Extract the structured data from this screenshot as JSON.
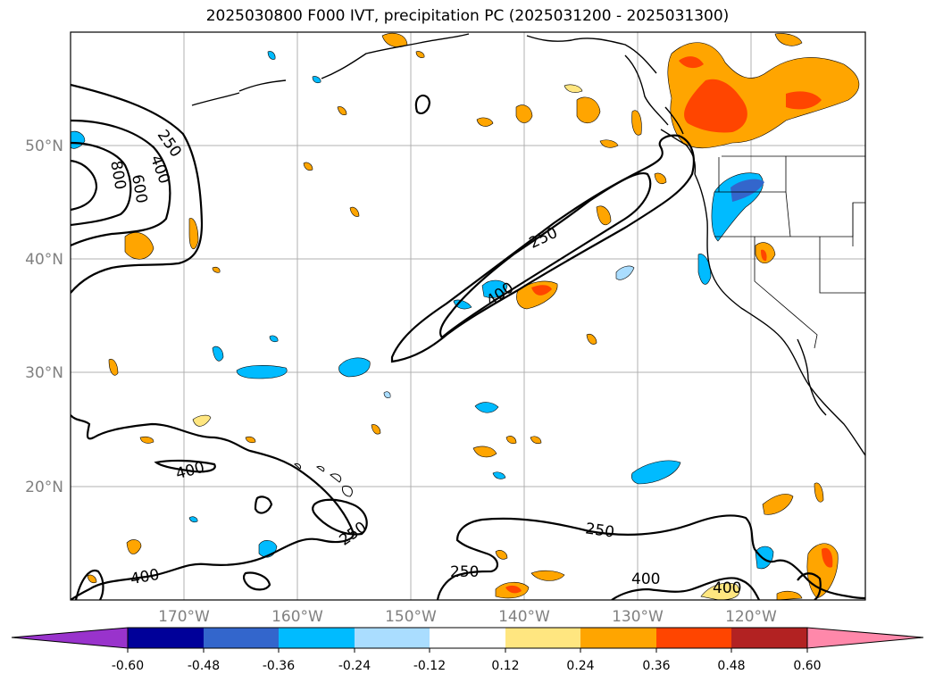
{
  "title": "2025030800 F000 IVT, precipitation PC (2025031200 - 2025031300)",
  "map": {
    "lat_ticks": [
      {
        "value": 50,
        "label": "50°N"
      },
      {
        "value": 40,
        "label": "40°N"
      },
      {
        "value": 30,
        "label": "30°N"
      },
      {
        "value": 20,
        "label": "20°N"
      }
    ],
    "lon_ticks": [
      {
        "value": -170,
        "label": "170°W"
      },
      {
        "value": -160,
        "label": "160°W"
      },
      {
        "value": -150,
        "label": "150°W"
      },
      {
        "value": -140,
        "label": "140°W"
      },
      {
        "value": -130,
        "label": "130°W"
      },
      {
        "value": -120,
        "label": "120°W"
      }
    ],
    "lon_range": [
      -180,
      -110
    ],
    "lat_range": [
      10,
      60
    ],
    "grid": true,
    "contour_labels": [
      "250",
      "400",
      "600",
      "800",
      "250",
      "400",
      "400",
      "250",
      "250",
      "250",
      "400",
      "400",
      "400"
    ]
  },
  "colorbar": {
    "ticks": [
      "-0.60",
      "-0.48",
      "-0.36",
      "-0.24",
      "-0.12",
      "0.12",
      "0.24",
      "0.36",
      "0.48",
      "0.60"
    ],
    "colors": {
      "under": "#9933cc",
      "c1": "#000099",
      "c2": "#3366cc",
      "c3": "#00bbff",
      "c4": "#aaddff",
      "c5": "#ffffff",
      "c6": "#ffe680",
      "c7": "#ffa500",
      "c8": "#ff4500",
      "c9": "#b22222",
      "over": "#ff88aa"
    }
  }
}
